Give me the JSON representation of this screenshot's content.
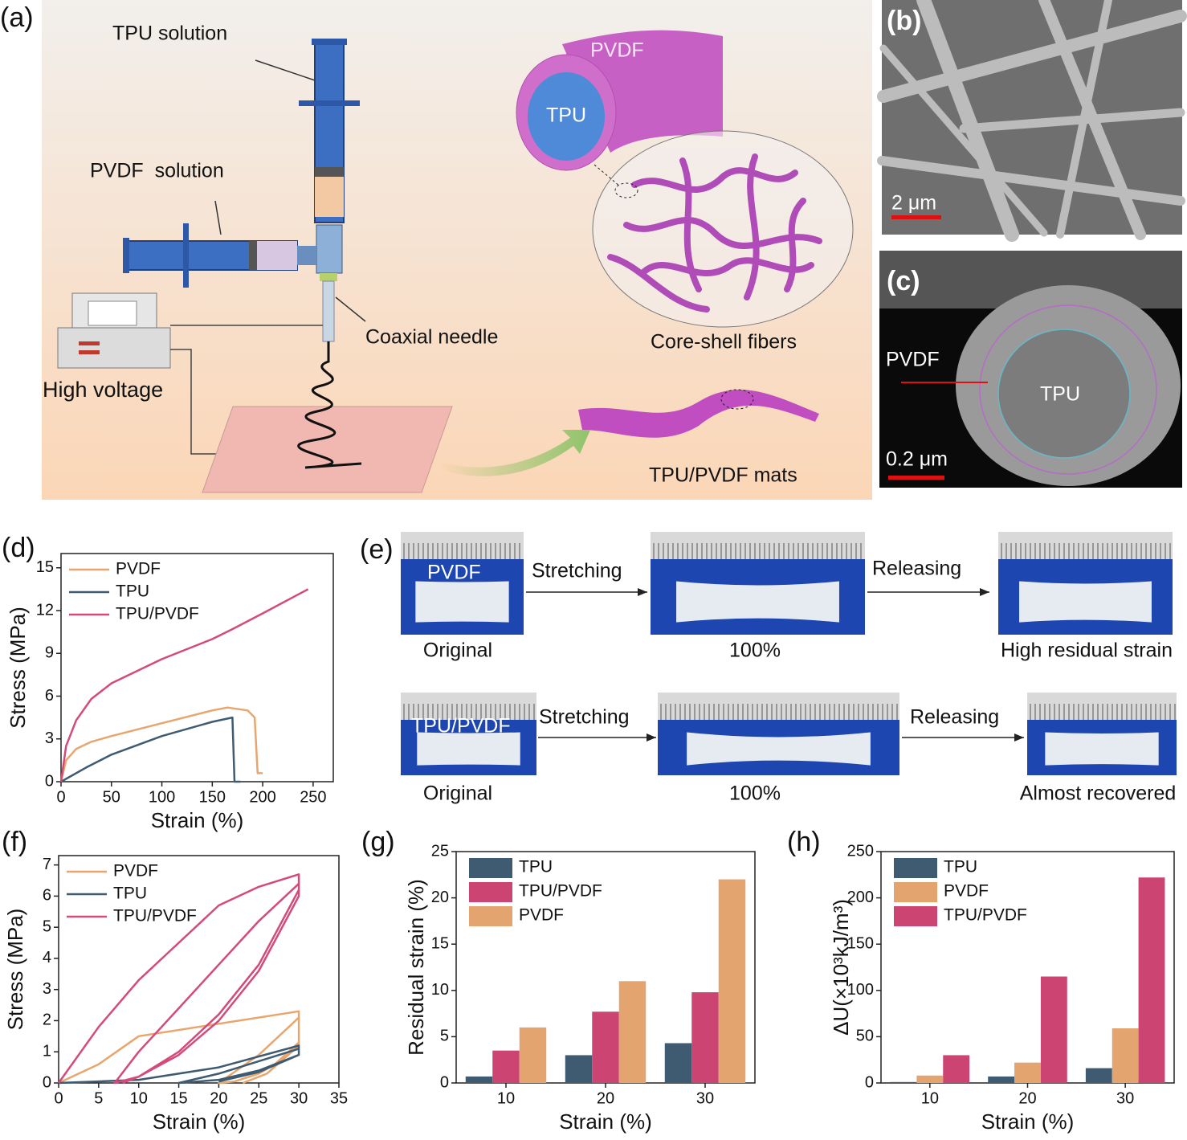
{
  "diagram": {
    "label": "(a)",
    "tpu_solution": "TPU solution",
    "pvdf_solution": "PVDF  solution",
    "coaxial_needle": "Coaxial needle",
    "high_voltage": "High voltage",
    "shell": "PVDF",
    "core": "TPU",
    "core_shell_fibers": "Core-shell fibers",
    "mats": "TPU/PVDF mats"
  },
  "images": {
    "b": {
      "label": "(b)",
      "scale": "2 μm"
    },
    "c": {
      "label": "(c)",
      "shell": "PVDF",
      "core": "TPU",
      "scale": "0.2 μm"
    }
  },
  "photos": {
    "label": "(e)",
    "rows": [
      {
        "sample": "PVDF",
        "step1": "Stretching",
        "step2": "Releasing",
        "captions": [
          "Original",
          "100%",
          "High residual strain"
        ]
      },
      {
        "sample": "TPU/PVDF",
        "step1": "Stretching",
        "step2": "Releasing",
        "captions": [
          "Original",
          "100%",
          "Almost recovered"
        ]
      }
    ]
  },
  "chart_data": [
    {
      "type": "line",
      "panel_label": "(d)",
      "xlabel": "Strain (%)",
      "ylabel": "Stress (MPa)",
      "xlim": [
        0,
        270
      ],
      "ylim": [
        0,
        16
      ],
      "xticks": [
        0,
        50,
        100,
        150,
        200,
        250
      ],
      "yticks": [
        0,
        3,
        6,
        9,
        12,
        15
      ],
      "legend": "upper left",
      "series": [
        {
          "name": "PVDF",
          "color": "#e8a66f",
          "x": [
            0,
            5,
            15,
            30,
            50,
            100,
            150,
            165,
            185,
            192,
            195,
            200
          ],
          "values": [
            0,
            1.5,
            2.3,
            2.8,
            3.2,
            4.1,
            5.0,
            5.2,
            5.0,
            4.5,
            0.6,
            0.6
          ]
        },
        {
          "name": "TPU",
          "color": "#3f5b72",
          "x": [
            0,
            25,
            50,
            100,
            150,
            170,
            172,
            178
          ],
          "values": [
            0,
            1.0,
            1.9,
            3.2,
            4.2,
            4.5,
            0,
            0
          ]
        },
        {
          "name": "TPU/PVDF",
          "color": "#d44a7a",
          "x": [
            0,
            5,
            15,
            30,
            50,
            100,
            150,
            170,
            200,
            245
          ],
          "values": [
            0,
            2.5,
            4.3,
            5.8,
            6.9,
            8.6,
            10.0,
            10.7,
            11.8,
            13.5
          ]
        }
      ]
    },
    {
      "type": "line",
      "panel_label": "(f)",
      "xlabel": "Strain (%)",
      "ylabel": "Stress (MPa)",
      "xlim": [
        0,
        35
      ],
      "ylim": [
        0,
        7.3
      ],
      "xticks": [
        0,
        5,
        10,
        15,
        20,
        25,
        30,
        35
      ],
      "yticks": [
        0,
        1,
        2,
        3,
        4,
        5,
        6,
        7
      ],
      "legend": "upper left",
      "series": [
        {
          "name": "PVDF",
          "color": "#e8a66f",
          "x": [
            0,
            5,
            10,
            20,
            30,
            30,
            27,
            25,
            22,
            20,
            25,
            30,
            30,
            26,
            23
          ],
          "values": [
            0,
            0.6,
            1.5,
            1.9,
            2.3,
            1.3,
            0.6,
            0.3,
            0.05,
            0,
            0.9,
            2.1,
            1.2,
            0.3,
            0
          ]
        },
        {
          "name": "TPU",
          "color": "#3f5b72",
          "x": [
            0,
            10,
            20,
            30,
            30,
            25,
            20,
            15,
            20,
            25,
            30,
            30,
            25,
            20
          ],
          "values": [
            0,
            0.1,
            0.5,
            1.2,
            0.9,
            0.4,
            0.1,
            0,
            0.3,
            0.7,
            1.1,
            0.9,
            0.35,
            0.05
          ]
        },
        {
          "name": "TPU/PVDF",
          "color": "#d44a7a",
          "x": [
            0,
            5,
            10,
            15,
            20,
            25,
            30,
            30,
            25,
            20,
            15,
            10,
            7,
            10,
            15,
            20,
            25,
            30,
            30,
            25,
            20,
            15,
            10,
            8
          ],
          "values": [
            0,
            1.8,
            3.3,
            4.5,
            5.7,
            6.3,
            6.7,
            6.0,
            3.6,
            2.0,
            0.9,
            0.2,
            0,
            1.0,
            2.4,
            3.8,
            5.2,
            6.4,
            6.2,
            3.8,
            2.2,
            1.0,
            0.2,
            0
          ]
        }
      ]
    },
    {
      "type": "bar",
      "panel_label": "(g)",
      "xlabel": "Strain (%)",
      "ylabel": "Residual strain (%)",
      "categories": [
        "10",
        "20",
        "30"
      ],
      "ylim": [
        0,
        25
      ],
      "yticks": [
        0,
        5,
        10,
        15,
        20,
        25
      ],
      "legend": "upper left",
      "series": [
        {
          "name": "TPU",
          "color": "#3f5b72",
          "values": [
            0.7,
            3.0,
            4.3
          ]
        },
        {
          "name": "TPU/PVDF",
          "color": "#cc4472",
          "values": [
            3.5,
            7.7,
            9.8
          ]
        },
        {
          "name": "PVDF",
          "color": "#e3a46f",
          "values": [
            6.0,
            11.0,
            22.0
          ]
        }
      ]
    },
    {
      "type": "bar",
      "panel_label": "(h)",
      "xlabel": "Strain (%)",
      "ylabel": "ΔU(×10³kJ/m³)",
      "categories": [
        "10",
        "20",
        "30"
      ],
      "ylim": [
        0,
        250
      ],
      "yticks": [
        0,
        50,
        100,
        150,
        200,
        250
      ],
      "legend": "upper left",
      "series": [
        {
          "name": "TPU",
          "color": "#3f5b72",
          "values": [
            1,
            7,
            16
          ]
        },
        {
          "name": "PVDF",
          "color": "#e3a46f",
          "values": [
            8,
            22,
            59
          ]
        },
        {
          "name": "TPU/PVDF",
          "color": "#cc4472",
          "values": [
            30,
            115,
            222
          ]
        }
      ]
    }
  ]
}
